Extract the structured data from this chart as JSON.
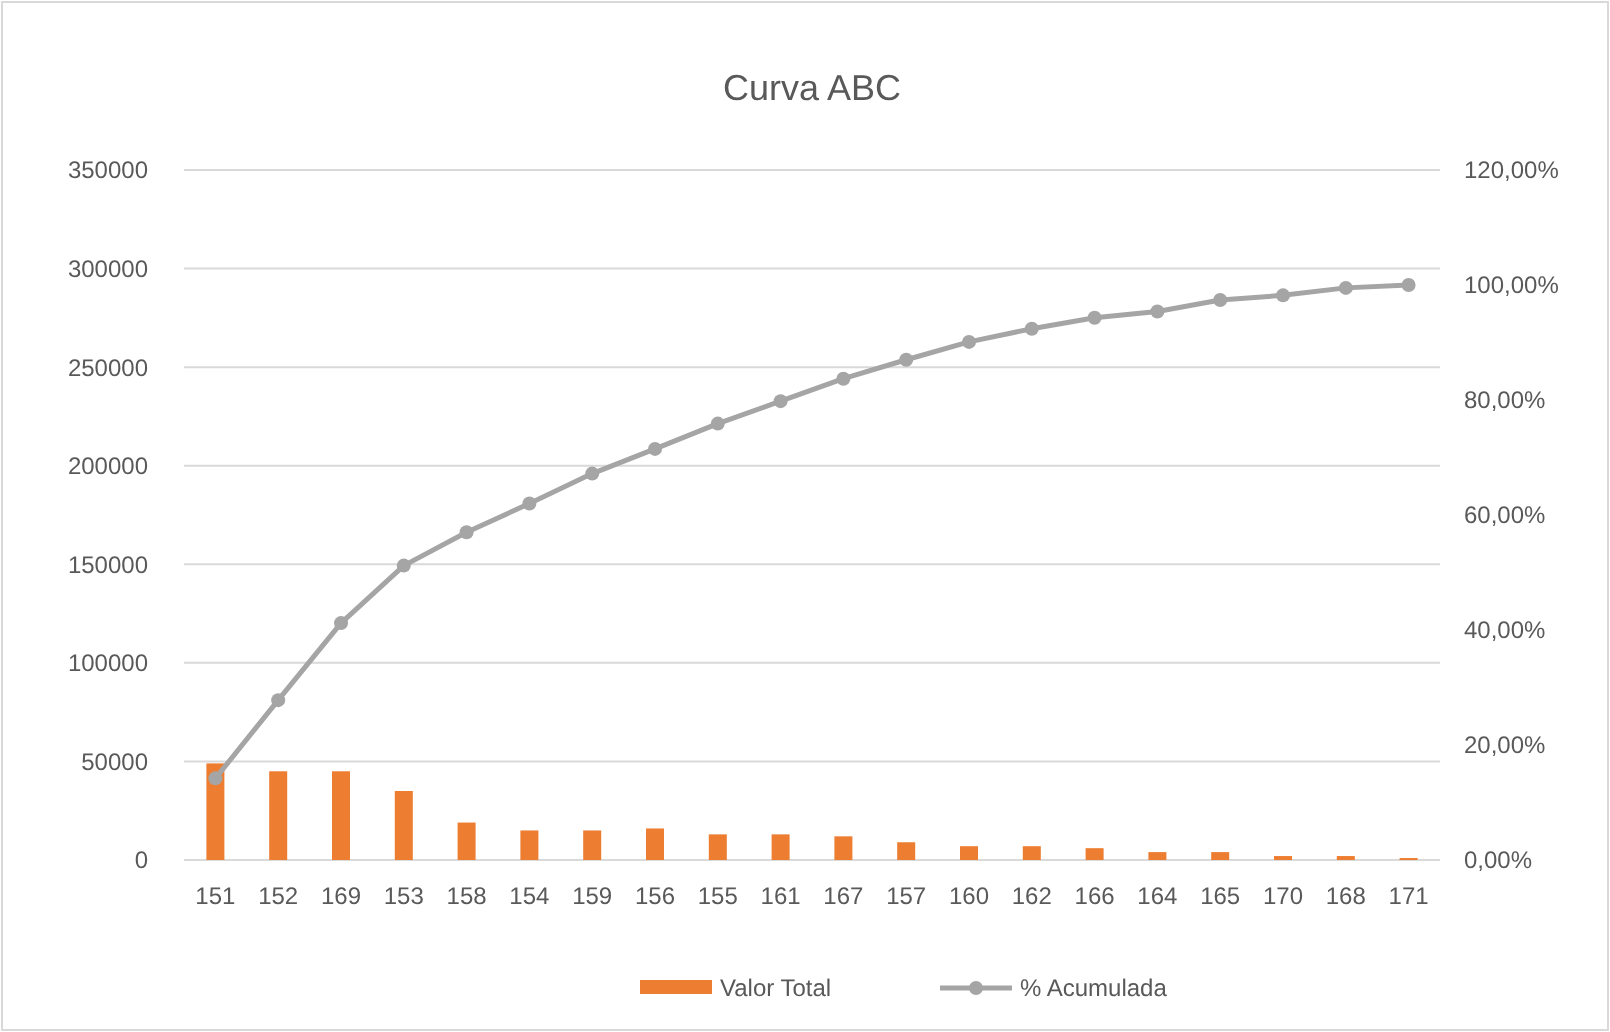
{
  "chart_data": {
    "type": "bar",
    "title": "Curva ABC",
    "categories": [
      "151",
      "152",
      "169",
      "153",
      "158",
      "154",
      "159",
      "156",
      "155",
      "161",
      "167",
      "157",
      "160",
      "162",
      "166",
      "164",
      "165",
      "170",
      "168",
      "171"
    ],
    "series": [
      {
        "name": "Valor Total",
        "color": "#ed7d31",
        "values": [
          49000,
          45000,
          45000,
          35000,
          19000,
          15000,
          15000,
          16000,
          13000,
          13000,
          12000,
          9000,
          7000,
          7000,
          6000,
          4000,
          4000,
          2000,
          2000,
          1000
        ]
      },
      {
        "name": "% Acumulada",
        "type": "line",
        "axis": "y2",
        "color": "#a5a5a5",
        "marker": "circle",
        "values": [
          14.2,
          27.8,
          41.2,
          51.2,
          57.0,
          62.0,
          67.2,
          71.5,
          75.9,
          79.8,
          83.7,
          87.0,
          90.1,
          92.4,
          94.3,
          95.4,
          97.4,
          98.2,
          99.5,
          100
        ]
      }
    ],
    "ylim": [
      0,
      350000
    ],
    "yticks": [
      0,
      50000,
      100000,
      150000,
      200000,
      250000,
      300000,
      350000
    ],
    "y2lim": [
      0,
      120
    ],
    "y2ticks": [
      {
        "value": 0,
        "label": "0,00%"
      },
      {
        "value": 20,
        "label": "20,00%"
      },
      {
        "value": 40,
        "label": "40,00%"
      },
      {
        "value": 60,
        "label": "60,00%"
      },
      {
        "value": 80,
        "label": "80,00%"
      },
      {
        "value": 100,
        "label": "100,00%"
      },
      {
        "value": 120,
        "label": "120,00%"
      }
    ],
    "grid": "y",
    "legend": "bottom"
  }
}
